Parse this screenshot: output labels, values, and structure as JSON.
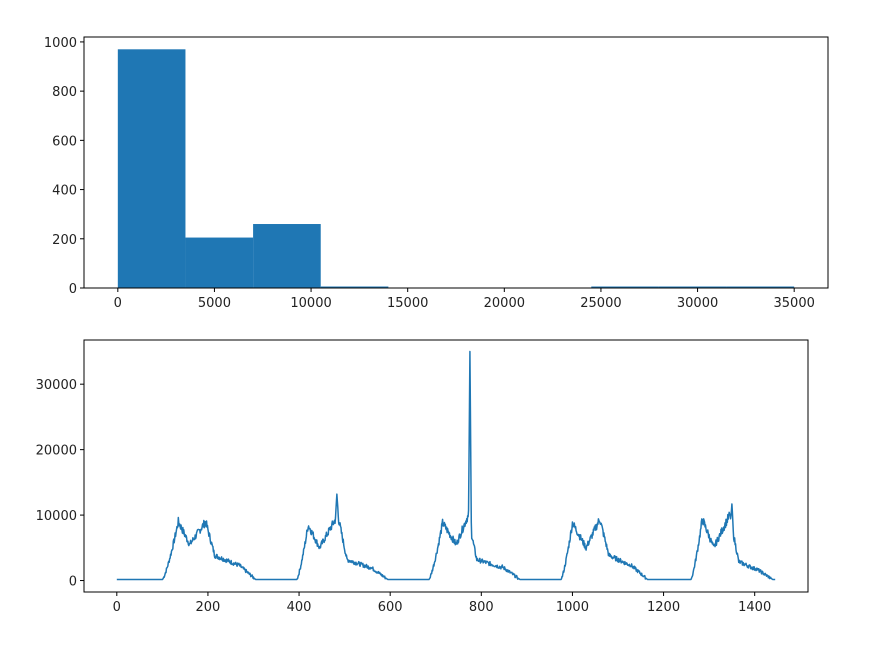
{
  "colors": {
    "series": "#1f77b4",
    "axes": "#000000",
    "background": "#ffffff"
  },
  "chart_data": [
    {
      "type": "bar",
      "subtype": "histogram",
      "bins": [
        {
          "x0": 0,
          "x1": 3500,
          "count": 970
        },
        {
          "x0": 3500,
          "x1": 7000,
          "count": 205
        },
        {
          "x0": 7000,
          "x1": 10500,
          "count": 260
        },
        {
          "x0": 10500,
          "x1": 14000,
          "count": 3
        },
        {
          "x0": 14000,
          "x1": 17500,
          "count": 0
        },
        {
          "x0": 17500,
          "x1": 21000,
          "count": 0
        },
        {
          "x0": 21000,
          "x1": 24500,
          "count": 0
        },
        {
          "x0": 24500,
          "x1": 28000,
          "count": 2
        },
        {
          "x0": 28000,
          "x1": 31500,
          "count": 2
        },
        {
          "x0": 31500,
          "x1": 35000,
          "count": 2
        }
      ],
      "xlim": [
        -1750,
        36750
      ],
      "ylim": [
        0,
        1020
      ],
      "xticks": [
        0,
        5000,
        10000,
        15000,
        20000,
        25000,
        30000,
        35000
      ],
      "yticks": [
        0,
        200,
        400,
        600,
        800,
        1000
      ],
      "xtick_labels": [
        "0",
        "5000",
        "10000",
        "15000",
        "20000",
        "25000",
        "30000",
        "35000"
      ],
      "ytick_labels": [
        "0",
        "200",
        "400",
        "600",
        "800",
        "1000"
      ],
      "title": "",
      "xlabel": "",
      "ylabel": "",
      "grid": false
    },
    {
      "type": "line",
      "x_range": [
        0,
        1445
      ],
      "shape": {
        "baseline": 150,
        "noise": 500,
        "cycles": [
          {
            "rise": 100,
            "peak1": 135,
            "dip": 160,
            "peak2": 195,
            "fall": 265,
            "v1": 9000,
            "vdip": 5500,
            "v2": 9000,
            "tail": 2400
          },
          {
            "rise": 395,
            "peak1": 420,
            "dip": 445,
            "peak2": 485,
            "fall": 555,
            "v1": 8500,
            "vdip": 5000,
            "v2": 10000,
            "tail": 2000
          },
          {
            "rise": 685,
            "peak1": 715,
            "dip": 745,
            "peak2": 770,
            "fall": 845,
            "v1": 8800,
            "vdip": 5500,
            "v2": 9800,
            "tail": 2000
          },
          {
            "rise": 975,
            "peak1": 1000,
            "dip": 1030,
            "peak2": 1060,
            "fall": 1125,
            "v1": 8800,
            "vdip": 5000,
            "v2": 9400,
            "tail": 2400
          },
          {
            "rise": 1260,
            "peak1": 1285,
            "dip": 1310,
            "peak2": 1345,
            "fall": 1400,
            "v1": 9400,
            "vdip": 5000,
            "v2": 10000,
            "tail": 1800
          }
        ],
        "spikes": [
          {
            "x": 483,
            "y": 13200
          },
          {
            "x": 775,
            "y": 35000
          },
          {
            "x": 1350,
            "y": 11700
          }
        ]
      },
      "xlim": [
        -72,
        1517
      ],
      "ylim": [
        -1750,
        36750
      ],
      "xticks": [
        0,
        200,
        400,
        600,
        800,
        1000,
        1200,
        1400
      ],
      "yticks": [
        0,
        10000,
        20000,
        30000
      ],
      "xtick_labels": [
        "0",
        "200",
        "400",
        "600",
        "800",
        "1000",
        "1200",
        "1400"
      ],
      "ytick_labels": [
        "0",
        "10000",
        "20000",
        "30000"
      ],
      "title": "",
      "xlabel": "",
      "ylabel": "",
      "grid": false
    }
  ]
}
